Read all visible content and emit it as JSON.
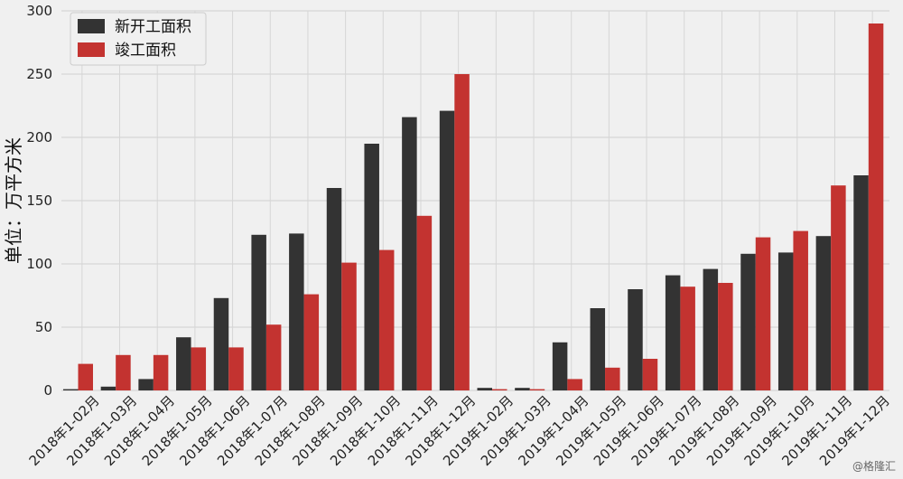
{
  "chart_data": {
    "type": "bar",
    "ylabel": "单位：万平方米",
    "ylim": [
      0,
      300
    ],
    "yticks": [
      0,
      50,
      100,
      150,
      200,
      250,
      300
    ],
    "grid": true,
    "legend_position": "top-left",
    "categories": [
      "2018年1-02月",
      "2018年1-03月",
      "2018年1-04月",
      "2018年1-05月",
      "2018年1-06月",
      "2018年1-07月",
      "2018年1-08月",
      "2018年1-09月",
      "2018年1-10月",
      "2018年1-11月",
      "2018年1-12月",
      "2019年1-02月",
      "2019年1-03月",
      "2019年1-04月",
      "2019年1-05月",
      "2019年1-06月",
      "2019年1-07月",
      "2019年1-08月",
      "2019年1-09月",
      "2019年1-10月",
      "2019年1-11月",
      "2019年1-12月"
    ],
    "series": [
      {
        "name": "新开工面积",
        "color": "#333333",
        "values": [
          1,
          3,
          9,
          42,
          73,
          123,
          124,
          160,
          195,
          216,
          221,
          2,
          2,
          38,
          65,
          80,
          91,
          96,
          108,
          109,
          122,
          170
        ]
      },
      {
        "name": "竣工面积",
        "color": "#c33330",
        "values": [
          21,
          28,
          28,
          34,
          34,
          52,
          76,
          101,
          111,
          138,
          250,
          1,
          1,
          9,
          18,
          25,
          82,
          85,
          121,
          126,
          162,
          290
        ]
      }
    ]
  },
  "watermark": "@格隆汇"
}
